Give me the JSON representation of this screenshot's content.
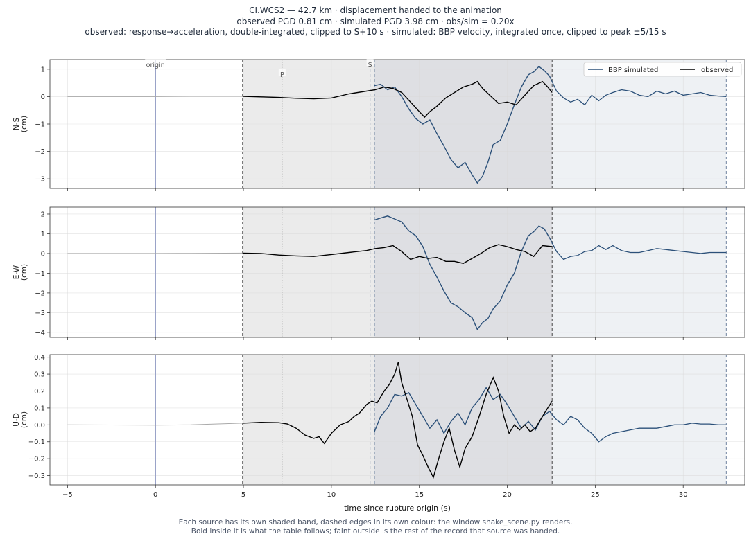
{
  "header": {
    "line1": "CI.WCS2  —  42.7 km   ·   displacement handed to the animation",
    "line2": "observed PGD 0.81 cm   ·   simulated PGD 3.98 cm   ·   obs/sim = 0.20x",
    "line3": "observed: response→acceleration, double-integrated, clipped to S+10 s   ·   simulated: BBP velocity, integrated once, clipped to peak ±5/15 s"
  },
  "footer": {
    "line1": "Each source has its own shaded band, dashed edges in its own colour: the window shake_scene.py renders.",
    "line2": "Bold inside it is what the table follows;   faint outside is the rest of the record that source was handed."
  },
  "colors": {
    "observed": "#000000",
    "simulated": "#2b5079",
    "faint_trace": "#a9a9a9",
    "origin_line": "#9aa3c8",
    "observed_band": "#ebebeb",
    "simulated_band": "#eef1f4",
    "overlap_band": "#dedfe3",
    "observed_edge": "#555555",
    "simulated_edge": "#7d8fa8",
    "pick_line": "#999999"
  },
  "chart_data": {
    "type": "line",
    "xlabel": "time since rupture origin (s)",
    "xlim": [
      -6,
      33.5
    ],
    "xticks": [
      -5,
      0,
      5,
      10,
      15,
      20,
      25,
      30
    ],
    "grid": true,
    "legend": {
      "placement": "top-right",
      "entries": [
        "BBP simulated",
        "observed"
      ]
    },
    "markers": {
      "origin": 0,
      "P": 7.2,
      "S": 12.2
    },
    "marker_labels": {
      "origin": "origin",
      "P": "P",
      "S": "S"
    },
    "observed_window": [
      4.95,
      22.55
    ],
    "simulated_window": [
      12.45,
      32.45
    ],
    "panels": [
      {
        "id": "ns",
        "ylabel": "N-S\n(cm)",
        "ylim": [
          -3.35,
          1.35
        ],
        "yticks": [
          -3,
          -2,
          -1,
          0,
          1
        ],
        "observed": [
          [
            -5,
            0
          ],
          [
            0,
            0
          ],
          [
            2,
            0.01
          ],
          [
            4.95,
            0.01
          ],
          [
            6,
            -0.01
          ],
          [
            7,
            -0.03
          ],
          [
            8,
            -0.06
          ],
          [
            9,
            -0.08
          ],
          [
            10,
            -0.05
          ],
          [
            11,
            0.1
          ],
          [
            12,
            0.2
          ],
          [
            12.5,
            0.25
          ],
          [
            13,
            0.35
          ],
          [
            13.5,
            0.3
          ],
          [
            14,
            0.15
          ],
          [
            14.5,
            -0.2
          ],
          [
            15,
            -0.55
          ],
          [
            15.3,
            -0.75
          ],
          [
            15.6,
            -0.55
          ],
          [
            16,
            -0.35
          ],
          [
            16.5,
            -0.05
          ],
          [
            17,
            0.15
          ],
          [
            17.5,
            0.35
          ],
          [
            18,
            0.45
          ],
          [
            18.3,
            0.55
          ],
          [
            18.6,
            0.3
          ],
          [
            19,
            0.05
          ],
          [
            19.5,
            -0.25
          ],
          [
            20,
            -0.2
          ],
          [
            20.5,
            -0.3
          ],
          [
            21,
            0.05
          ],
          [
            21.5,
            0.4
          ],
          [
            22,
            0.55
          ],
          [
            22.3,
            0.35
          ],
          [
            22.55,
            0.15
          ]
        ],
        "simulated": [
          [
            12.45,
            0.4
          ],
          [
            12.8,
            0.45
          ],
          [
            13.2,
            0.25
          ],
          [
            13.6,
            0.35
          ],
          [
            14,
            0
          ],
          [
            14.4,
            -0.45
          ],
          [
            14.8,
            -0.8
          ],
          [
            15.2,
            -1.0
          ],
          [
            15.6,
            -0.85
          ],
          [
            16,
            -1.35
          ],
          [
            16.4,
            -1.8
          ],
          [
            16.8,
            -2.3
          ],
          [
            17.2,
            -2.6
          ],
          [
            17.6,
            -2.4
          ],
          [
            18,
            -2.85
          ],
          [
            18.3,
            -3.15
          ],
          [
            18.6,
            -2.9
          ],
          [
            18.9,
            -2.4
          ],
          [
            19.2,
            -1.75
          ],
          [
            19.6,
            -1.6
          ],
          [
            20,
            -1.0
          ],
          [
            20.4,
            -0.3
          ],
          [
            20.8,
            0.35
          ],
          [
            21.2,
            0.8
          ],
          [
            21.5,
            0.9
          ],
          [
            21.8,
            1.1
          ],
          [
            22.1,
            0.95
          ],
          [
            22.4,
            0.75
          ],
          [
            22.8,
            0.2
          ],
          [
            23.2,
            -0.05
          ],
          [
            23.6,
            -0.2
          ],
          [
            24,
            -0.1
          ],
          [
            24.4,
            -0.3
          ],
          [
            24.8,
            0.05
          ],
          [
            25.2,
            -0.15
          ],
          [
            25.6,
            0.05
          ],
          [
            26,
            0.15
          ],
          [
            26.5,
            0.25
          ],
          [
            27,
            0.2
          ],
          [
            27.5,
            0.05
          ],
          [
            28,
            0.0
          ],
          [
            28.5,
            0.2
          ],
          [
            29,
            0.1
          ],
          [
            29.5,
            0.2
          ],
          [
            30,
            0.05
          ],
          [
            30.5,
            0.1
          ],
          [
            31,
            0.15
          ],
          [
            31.5,
            0.05
          ],
          [
            32,
            0.02
          ],
          [
            32.45,
            0.0
          ]
        ]
      },
      {
        "id": "ew",
        "ylabel": "E-W\n(cm)",
        "ylim": [
          -4.25,
          2.35
        ],
        "yticks": [
          -4,
          -3,
          -2,
          -1,
          0,
          1,
          2
        ],
        "observed": [
          [
            -5,
            0
          ],
          [
            0,
            0
          ],
          [
            2,
            0.01
          ],
          [
            4.95,
            0.02
          ],
          [
            6,
            0.0
          ],
          [
            7,
            -0.08
          ],
          [
            8,
            -0.12
          ],
          [
            9,
            -0.15
          ],
          [
            10,
            -0.05
          ],
          [
            11,
            0.05
          ],
          [
            12,
            0.15
          ],
          [
            12.5,
            0.25
          ],
          [
            13,
            0.3
          ],
          [
            13.5,
            0.4
          ],
          [
            14,
            0.1
          ],
          [
            14.5,
            -0.3
          ],
          [
            15,
            -0.15
          ],
          [
            15.5,
            -0.25
          ],
          [
            16,
            -0.2
          ],
          [
            16.5,
            -0.4
          ],
          [
            17,
            -0.4
          ],
          [
            17.5,
            -0.5
          ],
          [
            18,
            -0.25
          ],
          [
            18.5,
            0.0
          ],
          [
            19,
            0.3
          ],
          [
            19.5,
            0.45
          ],
          [
            20,
            0.35
          ],
          [
            20.5,
            0.2
          ],
          [
            21,
            0.1
          ],
          [
            21.5,
            -0.15
          ],
          [
            22,
            0.4
          ],
          [
            22.55,
            0.35
          ]
        ],
        "simulated": [
          [
            12.45,
            1.7
          ],
          [
            12.8,
            1.8
          ],
          [
            13.2,
            1.9
          ],
          [
            13.6,
            1.75
          ],
          [
            14,
            1.6
          ],
          [
            14.4,
            1.15
          ],
          [
            14.8,
            0.9
          ],
          [
            15.2,
            0.35
          ],
          [
            15.6,
            -0.55
          ],
          [
            16,
            -1.2
          ],
          [
            16.4,
            -1.9
          ],
          [
            16.8,
            -2.5
          ],
          [
            17.2,
            -2.7
          ],
          [
            17.6,
            -3.0
          ],
          [
            18,
            -3.25
          ],
          [
            18.3,
            -3.85
          ],
          [
            18.6,
            -3.5
          ],
          [
            18.9,
            -3.3
          ],
          [
            19.2,
            -2.8
          ],
          [
            19.6,
            -2.4
          ],
          [
            20,
            -1.6
          ],
          [
            20.4,
            -1.0
          ],
          [
            20.8,
            0.1
          ],
          [
            21.2,
            0.9
          ],
          [
            21.5,
            1.1
          ],
          [
            21.8,
            1.4
          ],
          [
            22.1,
            1.25
          ],
          [
            22.4,
            0.8
          ],
          [
            22.8,
            0.1
          ],
          [
            23.2,
            -0.3
          ],
          [
            23.6,
            -0.15
          ],
          [
            24,
            -0.1
          ],
          [
            24.4,
            0.1
          ],
          [
            24.8,
            0.15
          ],
          [
            25.2,
            0.4
          ],
          [
            25.6,
            0.2
          ],
          [
            26,
            0.4
          ],
          [
            26.5,
            0.15
          ],
          [
            27,
            0.05
          ],
          [
            27.5,
            0.05
          ],
          [
            28,
            0.15
          ],
          [
            28.5,
            0.25
          ],
          [
            29,
            0.2
          ],
          [
            29.5,
            0.15
          ],
          [
            30,
            0.1
          ],
          [
            30.5,
            0.05
          ],
          [
            31,
            0.0
          ],
          [
            31.5,
            0.05
          ],
          [
            32,
            0.05
          ],
          [
            32.45,
            0.05
          ]
        ]
      },
      {
        "id": "ud",
        "ylabel": "U-D\n(cm)",
        "ylim": [
          -0.355,
          0.415
        ],
        "yticks": [
          -0.3,
          -0.2,
          -0.1,
          0.0,
          0.1,
          0.2,
          0.3,
          0.4
        ],
        "observed": [
          [
            -5,
            0
          ],
          [
            0,
            -0.002
          ],
          [
            2,
            0.0
          ],
          [
            4.95,
            0.01
          ],
          [
            6,
            0.015
          ],
          [
            7,
            0.013
          ],
          [
            7.5,
            0.005
          ],
          [
            8,
            -0.02
          ],
          [
            8.5,
            -0.06
          ],
          [
            9,
            -0.08
          ],
          [
            9.3,
            -0.07
          ],
          [
            9.6,
            -0.11
          ],
          [
            10,
            -0.05
          ],
          [
            10.5,
            0.0
          ],
          [
            11,
            0.02
          ],
          [
            11.3,
            0.05
          ],
          [
            11.6,
            0.07
          ],
          [
            12,
            0.12
          ],
          [
            12.3,
            0.14
          ],
          [
            12.6,
            0.13
          ],
          [
            13,
            0.2
          ],
          [
            13.3,
            0.24
          ],
          [
            13.6,
            0.3
          ],
          [
            13.8,
            0.37
          ],
          [
            14,
            0.25
          ],
          [
            14.3,
            0.15
          ],
          [
            14.6,
            0.05
          ],
          [
            14.9,
            -0.12
          ],
          [
            15.2,
            -0.18
          ],
          [
            15.5,
            -0.25
          ],
          [
            15.8,
            -0.31
          ],
          [
            16.1,
            -0.2
          ],
          [
            16.4,
            -0.1
          ],
          [
            16.7,
            -0.02
          ],
          [
            17,
            -0.15
          ],
          [
            17.3,
            -0.25
          ],
          [
            17.6,
            -0.14
          ],
          [
            18,
            -0.07
          ],
          [
            18.4,
            0.05
          ],
          [
            18.8,
            0.18
          ],
          [
            19.2,
            0.28
          ],
          [
            19.5,
            0.2
          ],
          [
            19.8,
            0.05
          ],
          [
            20.1,
            -0.05
          ],
          [
            20.4,
            0.0
          ],
          [
            20.7,
            -0.03
          ],
          [
            21,
            0.0
          ],
          [
            21.3,
            -0.04
          ],
          [
            21.6,
            -0.02
          ],
          [
            22,
            0.05
          ],
          [
            22.3,
            0.1
          ],
          [
            22.55,
            0.14
          ]
        ],
        "simulated": [
          [
            12.45,
            -0.04
          ],
          [
            12.8,
            0.05
          ],
          [
            13.2,
            0.1
          ],
          [
            13.6,
            0.18
          ],
          [
            14,
            0.17
          ],
          [
            14.4,
            0.19
          ],
          [
            14.8,
            0.12
          ],
          [
            15.2,
            0.05
          ],
          [
            15.6,
            -0.02
          ],
          [
            16,
            0.03
          ],
          [
            16.4,
            -0.05
          ],
          [
            16.8,
            0.02
          ],
          [
            17.2,
            0.07
          ],
          [
            17.6,
            0.0
          ],
          [
            18,
            0.1
          ],
          [
            18.4,
            0.15
          ],
          [
            18.8,
            0.22
          ],
          [
            19.2,
            0.15
          ],
          [
            19.6,
            0.18
          ],
          [
            20,
            0.12
          ],
          [
            20.4,
            0.05
          ],
          [
            20.8,
            -0.02
          ],
          [
            21.2,
            0.02
          ],
          [
            21.6,
            -0.03
          ],
          [
            22,
            0.05
          ],
          [
            22.4,
            0.08
          ],
          [
            22.8,
            0.03
          ],
          [
            23.2,
            0.0
          ],
          [
            23.6,
            0.05
          ],
          [
            24,
            0.03
          ],
          [
            24.4,
            -0.02
          ],
          [
            24.8,
            -0.05
          ],
          [
            25.2,
            -0.1
          ],
          [
            25.6,
            -0.07
          ],
          [
            26,
            -0.05
          ],
          [
            26.5,
            -0.04
          ],
          [
            27,
            -0.03
          ],
          [
            27.5,
            -0.02
          ],
          [
            28,
            -0.02
          ],
          [
            28.5,
            -0.02
          ],
          [
            29,
            -0.01
          ],
          [
            29.5,
            0.0
          ],
          [
            30,
            0.0
          ],
          [
            30.5,
            0.01
          ],
          [
            31,
            0.005
          ],
          [
            31.5,
            0.005
          ],
          [
            32,
            0.0
          ],
          [
            32.45,
            0.0
          ]
        ]
      }
    ]
  }
}
